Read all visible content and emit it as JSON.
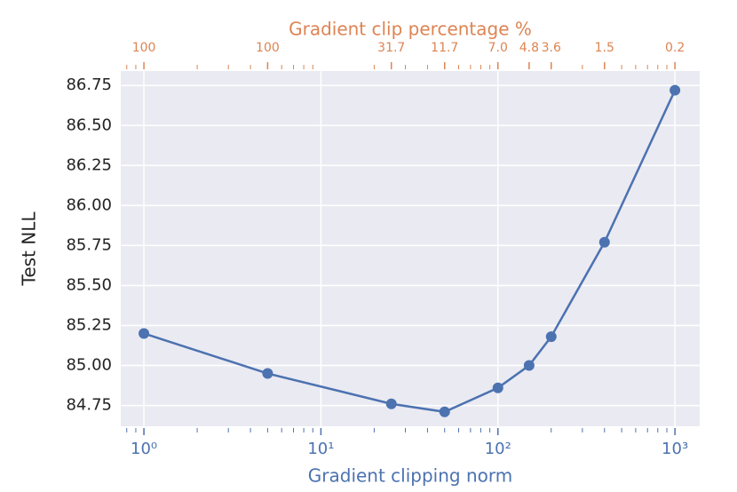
{
  "chart_data": {
    "type": "line",
    "xlabel": "Gradient clipping norm",
    "ylabel": "Test NLL",
    "top_xlabel": "Gradient clip percentage %",
    "x": [
      1,
      5,
      25,
      50,
      100,
      150,
      200,
      400,
      1000
    ],
    "series": [
      {
        "color": "#4c72b0",
        "values": [
          85.2,
          84.95,
          84.76,
          84.71,
          84.86,
          85.0,
          85.18,
          85.77,
          86.72
        ]
      }
    ],
    "xscale": "log",
    "xlim": [
      0.74,
      1380
    ],
    "ylim": [
      84.62,
      86.84
    ],
    "xticks": [
      {
        "value": 1,
        "label": "10⁰"
      },
      {
        "value": 10,
        "label": "10¹"
      },
      {
        "value": 100,
        "label": "10²"
      },
      {
        "value": 1000,
        "label": "10³"
      }
    ],
    "top_xticks": [
      {
        "value": 1,
        "label": "100"
      },
      {
        "value": 5,
        "label": "100"
      },
      {
        "value": 25,
        "label": "31.7"
      },
      {
        "value": 50,
        "label": "11.7"
      },
      {
        "value": 100,
        "label": "7.0"
      },
      {
        "value": 150,
        "label": "4.8"
      },
      {
        "value": 200,
        "label": "3.6"
      },
      {
        "value": 400,
        "label": "1.5"
      },
      {
        "value": 1000,
        "label": "0.2"
      }
    ],
    "top_color": "#dd8452",
    "yticks": [
      84.75,
      {
        "value": 85,
        "label": "85.00"
      },
      85.25,
      {
        "value": 85.5,
        "label": "85.50"
      },
      85.75,
      {
        "value": 86,
        "label": "86.00"
      },
      86.25,
      {
        "value": 86.5,
        "label": "86.50"
      },
      86.75
    ],
    "grid": true
  }
}
